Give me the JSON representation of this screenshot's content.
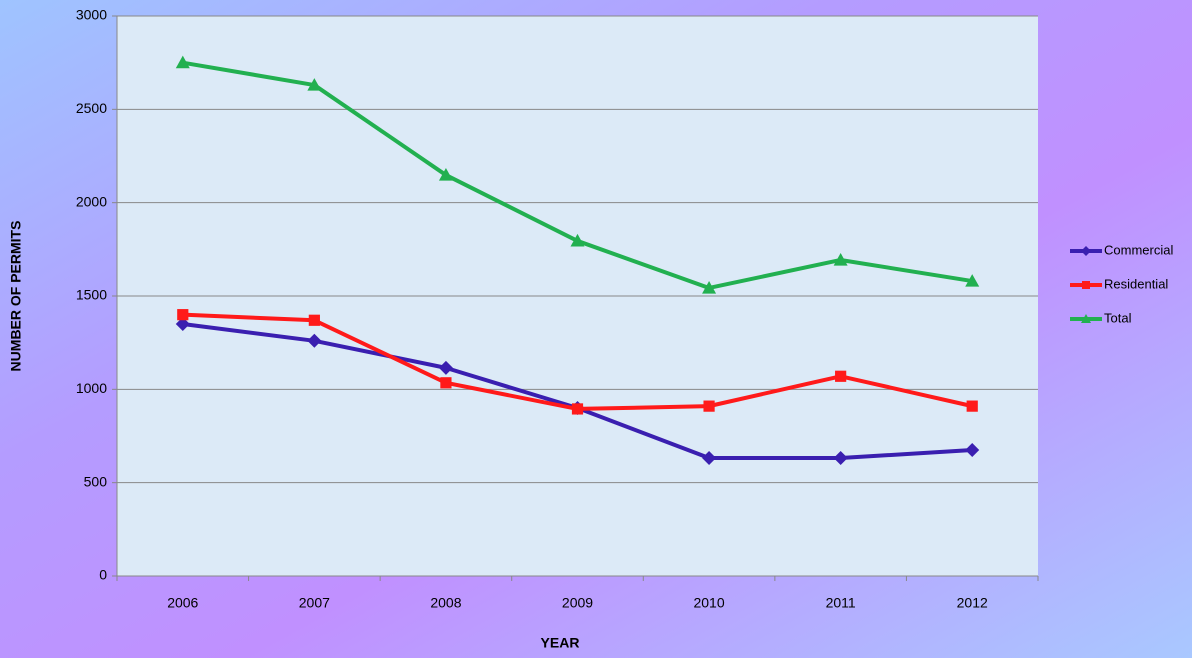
{
  "chart_data": {
    "type": "line",
    "x_label": "YEAR",
    "y_label": "NUMBER OF PERMITS",
    "categories": [
      "2006",
      "2007",
      "2008",
      "2009",
      "2010",
      "2011",
      "2012"
    ],
    "series": [
      {
        "name": "Commercial",
        "color": "#3a1fb0",
        "marker": "diamond",
        "values": [
          1350,
          1260,
          1115,
          900,
          632,
          632,
          675
        ]
      },
      {
        "name": "Residential",
        "color": "#ff1a1a",
        "marker": "square",
        "values": [
          1400,
          1370,
          1035,
          895,
          910,
          1070,
          910
        ]
      },
      {
        "name": "Total",
        "color": "#22b050",
        "marker": "triangle",
        "values": [
          2750,
          2630,
          2148,
          1795,
          1543,
          1693,
          1580
        ]
      }
    ],
    "ylim": [
      0,
      3000
    ],
    "yticks": [
      0,
      500,
      1000,
      1500,
      2000,
      2500,
      3000
    ],
    "grid": true,
    "legend": "right"
  }
}
